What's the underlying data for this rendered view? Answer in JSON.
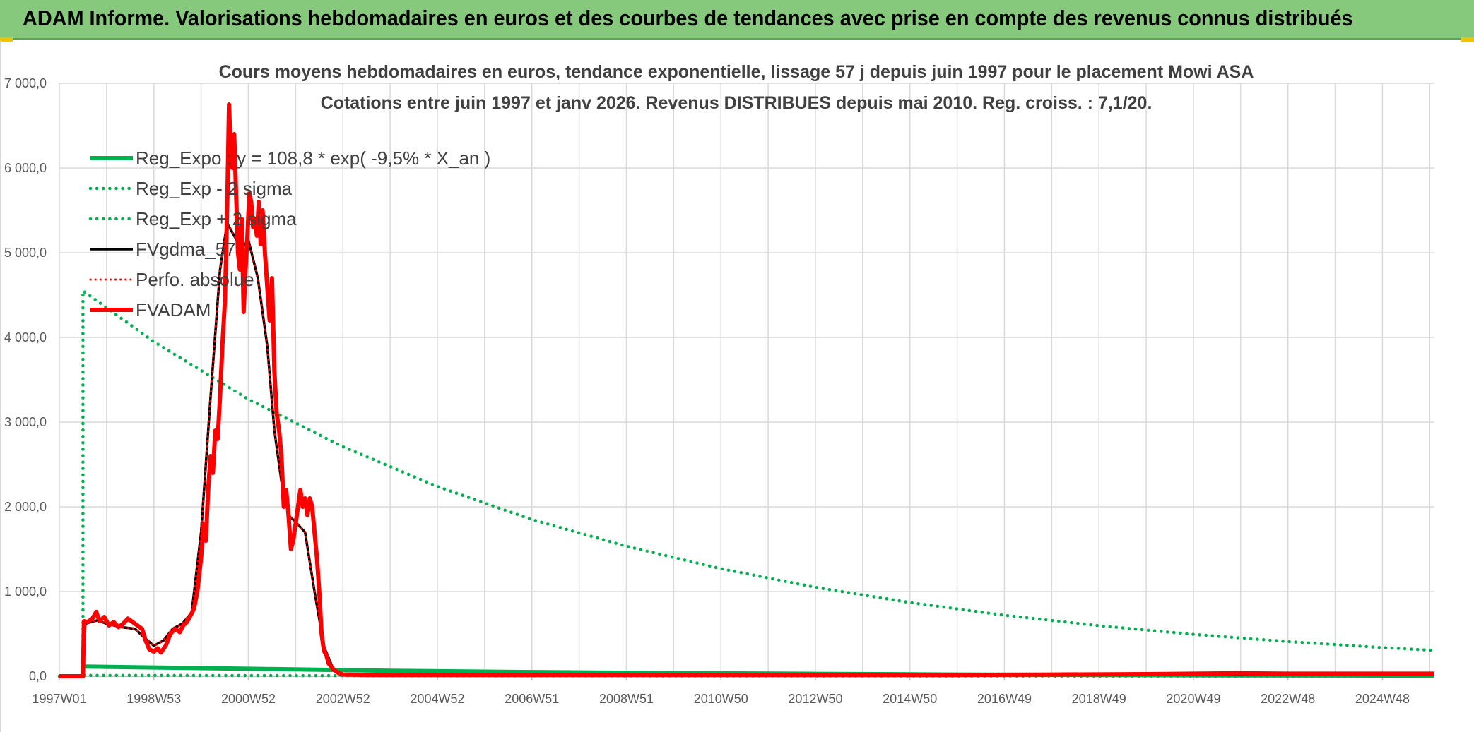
{
  "banner": {
    "title": "ADAM Informe. Valorisations hebdomadaires en euros et des courbes de tendances avec prise en compte des revenus connus distribués"
  },
  "colors": {
    "banner_bg": "#86c97c",
    "reg_expo": "#00b050",
    "fvgdma": "#000000",
    "perfo": "#ff0000",
    "fvadam": "#ff0000",
    "grid": "#d9d9d9"
  },
  "chart_data": {
    "type": "line",
    "title": "Cours moyens hebdomadaires en euros, tendance exponentielle, lissage 57 j depuis juin 1997 pour le placement Mowi ASA",
    "subtitle": "Cotations entre juin 1997 et janv 2026. Revenus DISTRIBUES depuis mai 2010. Reg. croiss. : 7,1/20.",
    "x_unit": "year",
    "xlim": [
      1997.0,
      2026.1
    ],
    "ylim": [
      0,
      7000
    ],
    "y_ticks": [
      0,
      1000,
      2000,
      3000,
      4000,
      5000,
      6000,
      7000
    ],
    "y_tick_labels": [
      "0,0",
      "1 000,0",
      "2 000,0",
      "3 000,0",
      "4 000,0",
      "5 000,0",
      "6 000,0",
      "7 000,0"
    ],
    "x_ticks": [
      1997.0,
      1999.0,
      2001.0,
      2003.0,
      2005.0,
      2007.0,
      2009.0,
      2011.0,
      2013.0,
      2015.0,
      2017.0,
      2019.0,
      2021.0,
      2023.0,
      2025.0
    ],
    "x_tick_labels": [
      "1997W01",
      "1998W53",
      "2000W52",
      "2002W52",
      "2004W52",
      "2006W51",
      "2008W51",
      "2010W50",
      "2012W50",
      "2014W50",
      "2016W49",
      "2018W49",
      "2020W49",
      "2022W48",
      "2024W48"
    ],
    "grid": true,
    "legend_position": "top-left",
    "series": [
      {
        "name": "Reg_Expo : y = 108,8 * exp( -9,5% *  X_an )",
        "style": "solid-green",
        "x": [
          1997.0,
          1997.5,
          1997.5,
          2001.0,
          2004.0,
          2007.0,
          2010.0,
          2013.0,
          2016.0,
          2019.0,
          2022.0,
          2025.0,
          2026.1
        ],
        "y": [
          0,
          0,
          115,
          88,
          65,
          49,
          37,
          28,
          20,
          15,
          11,
          8,
          7
        ]
      },
      {
        "name": "Reg_Exp - 2 sigma",
        "style": "dotted-green",
        "x": [
          1997.0,
          1997.5,
          1997.5,
          2001.0,
          2005.0,
          2010.0,
          2015.0,
          2020.0,
          2026.1
        ],
        "y": [
          0,
          0,
          10,
          8,
          6,
          4,
          3,
          2,
          1
        ]
      },
      {
        "name": "Reg_Exp + 2 sigma",
        "style": "dotted-green",
        "x": [
          1997.0,
          1997.5,
          1997.5,
          1999.0,
          2001.0,
          2003.0,
          2005.0,
          2007.0,
          2009.0,
          2011.0,
          2013.0,
          2015.0,
          2017.0,
          2019.0,
          2021.0,
          2023.0,
          2025.0,
          2026.1
        ],
        "y": [
          0,
          0,
          4550,
          3950,
          3270,
          2710,
          2240,
          1850,
          1535,
          1270,
          1050,
          870,
          720,
          597,
          494,
          409,
          338,
          305
        ]
      },
      {
        "name": "FVgdma_57",
        "style": "solid-black",
        "x": [
          1997.0,
          1997.5,
          1997.55,
          1997.8,
          1998.0,
          1998.3,
          1998.6,
          1998.85,
          1999.0,
          1999.2,
          1999.4,
          1999.6,
          1999.8,
          2000.0,
          2000.2,
          2000.4,
          2000.55,
          2000.7,
          2000.85,
          2001.0,
          2001.2,
          2001.4,
          2001.55,
          2001.7,
          2001.85,
          2002.0,
          2002.2,
          2002.4,
          2002.6,
          2002.8,
          2003.0,
          2003.5,
          2005.0,
          2010.0,
          2015.0,
          2020.0,
          2026.1
        ],
        "y": [
          0,
          0,
          620,
          660,
          620,
          580,
          560,
          430,
          360,
          420,
          560,
          620,
          750,
          1700,
          3300,
          4800,
          5350,
          5200,
          5050,
          5150,
          4700,
          3900,
          2900,
          2300,
          1900,
          1820,
          1700,
          1000,
          350,
          80,
          25,
          15,
          12,
          10,
          12,
          25,
          20
        ]
      },
      {
        "name": "Perfo. absolue",
        "style": "dotted-red",
        "x": [
          1997.0,
          1997.5,
          1997.55,
          1997.8,
          1998.0,
          1998.3,
          1998.6,
          1998.85,
          1999.0,
          1999.2,
          1999.4,
          1999.6,
          1999.8,
          2000.0,
          2000.2,
          2000.4,
          2000.55,
          2000.7,
          2000.85,
          2001.0,
          2001.2,
          2001.4,
          2001.55,
          2001.7,
          2001.85,
          2002.0,
          2002.2,
          2002.4,
          2002.6,
          2002.8,
          2003.0,
          2003.5,
          2005.0,
          2010.0,
          2015.0,
          2020.0,
          2026.1
        ],
        "y": [
          0,
          0,
          620,
          660,
          620,
          580,
          560,
          430,
          360,
          420,
          560,
          620,
          750,
          1700,
          3300,
          4800,
          5350,
          5200,
          5050,
          5150,
          4700,
          3900,
          2900,
          2300,
          1900,
          1820,
          1700,
          1000,
          350,
          80,
          25,
          15,
          12,
          10,
          12,
          25,
          20
        ]
      },
      {
        "name": "FVADAM",
        "style": "solid-red",
        "x": [
          1997.0,
          1997.5,
          1997.52,
          1997.6,
          1997.7,
          1997.78,
          1997.85,
          1997.95,
          1998.05,
          1998.15,
          1998.25,
          1998.35,
          1998.45,
          1998.55,
          1998.65,
          1998.75,
          1998.82,
          1998.9,
          1999.0,
          1999.08,
          1999.15,
          1999.25,
          1999.35,
          1999.45,
          1999.55,
          1999.62,
          1999.7,
          1999.78,
          1999.85,
          1999.92,
          2000.0,
          2000.05,
          2000.1,
          2000.15,
          2000.2,
          2000.25,
          2000.3,
          2000.35,
          2000.4,
          2000.45,
          2000.5,
          2000.53,
          2000.56,
          2000.59,
          2000.62,
          2000.66,
          2000.7,
          2000.74,
          2000.78,
          2000.82,
          2000.86,
          2000.9,
          2000.94,
          2000.98,
          2001.02,
          2001.06,
          2001.1,
          2001.14,
          2001.18,
          2001.22,
          2001.26,
          2001.3,
          2001.35,
          2001.4,
          2001.45,
          2001.5,
          2001.55,
          2001.6,
          2001.65,
          2001.7,
          2001.75,
          2001.8,
          2001.85,
          2001.9,
          2001.95,
          2002.0,
          2002.05,
          2002.1,
          2002.15,
          2002.2,
          2002.25,
          2002.3,
          2002.35,
          2002.4,
          2002.45,
          2002.5,
          2002.55,
          2002.6,
          2002.65,
          2002.7,
          2002.8,
          2002.9,
          2003.0,
          2003.5,
          2004.0,
          2006.0,
          2008.0,
          2010.0,
          2012.0,
          2014.0,
          2016.0,
          2018.0,
          2020.0,
          2021.0,
          2022.0,
          2023.0,
          2024.0,
          2026.1
        ],
        "y": [
          0,
          0,
          650,
          640,
          680,
          760,
          650,
          700,
          600,
          640,
          580,
          620,
          680,
          640,
          600,
          560,
          430,
          320,
          290,
          330,
          280,
          360,
          500,
          560,
          520,
          600,
          640,
          720,
          800,
          1000,
          1400,
          1800,
          1600,
          2200,
          2600,
          2400,
          2900,
          2800,
          3300,
          3900,
          4400,
          5000,
          5800,
          6750,
          6300,
          6000,
          6400,
          5700,
          5000,
          4800,
          5400,
          4300,
          4800,
          5200,
          5700,
          5600,
          5300,
          5400,
          5200,
          5600,
          5100,
          5500,
          5000,
          4600,
          4200,
          4700,
          3600,
          3100,
          2900,
          2600,
          2000,
          2200,
          1900,
          1500,
          1600,
          1800,
          2000,
          2200,
          2000,
          2100,
          1900,
          2100,
          2000,
          1700,
          1400,
          1000,
          500,
          300,
          250,
          150,
          80,
          40,
          20,
          15,
          15,
          15,
          15,
          15,
          15,
          15,
          15,
          20,
          25,
          30,
          35,
          30,
          30,
          30
        ]
      }
    ]
  }
}
